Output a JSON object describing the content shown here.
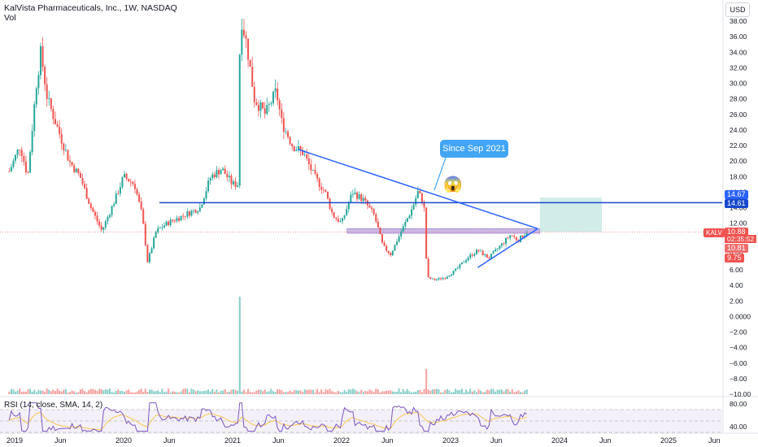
{
  "header": {
    "title": "KalVista Pharmaceuticals, Inc., 1W, NASDAQ",
    "volume_label": "Vol",
    "currency": "USD"
  },
  "annotation": {
    "callout_text": "Since Sep 2021",
    "emoji": "😱"
  },
  "price_labels": {
    "ticker": "KALV",
    "last_price": "10.88",
    "countdown": "02:35:52",
    "resistance_1": "14.67",
    "resistance_2": "14.61",
    "low": "10.81",
    "stop": "9.75"
  },
  "rsi": {
    "label": "RSI (14, close, SMA, 14, 2)",
    "ticks": [
      "80.00",
      "40.00"
    ]
  },
  "colors": {
    "up": "#26a69a",
    "down": "#ef5350",
    "trendline": "#2962ff",
    "horizontal_line": "#1848cc",
    "rsi_line": "#7e57c2",
    "rsi_ma": "#f9c74f",
    "zone": "#b39ddb",
    "target": "#b2dfdb",
    "stop": "#f8c1c0"
  },
  "chart_data": {
    "type": "candlestick",
    "title": "KalVista Pharmaceuticals, Inc., 1W, NASDAQ",
    "x_ticks": [
      "2019",
      "Jun",
      "2020",
      "Jun",
      "2021",
      "Jun",
      "2022",
      "Jun",
      "2023",
      "Jun",
      "2024",
      "Jun",
      "2025",
      "Jun"
    ],
    "y_ticks": [
      "38.00",
      "36.00",
      "34.00",
      "32.00",
      "30.00",
      "28.00",
      "26.00",
      "24.00",
      "22.00",
      "20.00",
      "18.00",
      "16.00",
      "14.00",
      "12.00",
      "10.00",
      "8.00",
      "6.00",
      "4.00",
      "2.00",
      "0.0000",
      "−2.00",
      "−4.00",
      "−6.00",
      "−8.00",
      "−10.00"
    ],
    "ylim": [
      -10,
      40
    ],
    "price_anchors": [
      {
        "t": 2018.9,
        "v": 17
      },
      {
        "t": 2019.05,
        "v": 22
      },
      {
        "t": 2019.12,
        "v": 18
      },
      {
        "t": 2019.2,
        "v": 30
      },
      {
        "t": 2019.24,
        "v": 34
      },
      {
        "t": 2019.3,
        "v": 28
      },
      {
        "t": 2019.4,
        "v": 24
      },
      {
        "t": 2019.5,
        "v": 20
      },
      {
        "t": 2019.6,
        "v": 18
      },
      {
        "t": 2019.7,
        "v": 14
      },
      {
        "t": 2019.8,
        "v": 11
      },
      {
        "t": 2019.92,
        "v": 15
      },
      {
        "t": 2020.0,
        "v": 18
      },
      {
        "t": 2020.1,
        "v": 17
      },
      {
        "t": 2020.17,
        "v": 13
      },
      {
        "t": 2020.22,
        "v": 7
      },
      {
        "t": 2020.3,
        "v": 11
      },
      {
        "t": 2020.4,
        "v": 12
      },
      {
        "t": 2020.55,
        "v": 13
      },
      {
        "t": 2020.7,
        "v": 14
      },
      {
        "t": 2020.8,
        "v": 18
      },
      {
        "t": 2020.9,
        "v": 19
      },
      {
        "t": 2021.0,
        "v": 17
      },
      {
        "t": 2021.05,
        "v": 17
      },
      {
        "t": 2021.07,
        "v": 39
      },
      {
        "t": 2021.13,
        "v": 35
      },
      {
        "t": 2021.2,
        "v": 28
      },
      {
        "t": 2021.3,
        "v": 26
      },
      {
        "t": 2021.4,
        "v": 29
      },
      {
        "t": 2021.45,
        "v": 25
      },
      {
        "t": 2021.55,
        "v": 22
      },
      {
        "t": 2021.65,
        "v": 21
      },
      {
        "t": 2021.75,
        "v": 18
      },
      {
        "t": 2021.85,
        "v": 16
      },
      {
        "t": 2021.92,
        "v": 13
      },
      {
        "t": 2022.0,
        "v": 12
      },
      {
        "t": 2022.1,
        "v": 16
      },
      {
        "t": 2022.2,
        "v": 15
      },
      {
        "t": 2022.3,
        "v": 13
      },
      {
        "t": 2022.38,
        "v": 9
      },
      {
        "t": 2022.45,
        "v": 8
      },
      {
        "t": 2022.55,
        "v": 11
      },
      {
        "t": 2022.65,
        "v": 14
      },
      {
        "t": 2022.7,
        "v": 16
      },
      {
        "t": 2022.74,
        "v": 15
      },
      {
        "t": 2022.77,
        "v": 13
      },
      {
        "t": 2022.78,
        "v": 5
      },
      {
        "t": 2022.85,
        "v": 4.7
      },
      {
        "t": 2022.95,
        "v": 5
      },
      {
        "t": 2023.05,
        "v": 6
      },
      {
        "t": 2023.15,
        "v": 7.5
      },
      {
        "t": 2023.25,
        "v": 8.5
      },
      {
        "t": 2023.35,
        "v": 7.5
      },
      {
        "t": 2023.45,
        "v": 9
      },
      {
        "t": 2023.55,
        "v": 10.5
      },
      {
        "t": 2023.62,
        "v": 9.8
      },
      {
        "t": 2023.7,
        "v": 10.88
      }
    ],
    "volume_spikes": [
      {
        "t": 2021.07,
        "v": 100
      },
      {
        "t": 2022.78,
        "v": 26
      }
    ],
    "drawings": {
      "horizontal_level": 14.64,
      "zone": [
        10.7,
        11.3
      ],
      "descending_trendline": [
        {
          "t": 2021.6,
          "v": 21.5
        },
        {
          "t": 2023.8,
          "v": 11.3
        }
      ],
      "rising_trendline": [
        {
          "t": 2023.25,
          "v": 6.3
        },
        {
          "t": 2023.8,
          "v": 11.3
        }
      ],
      "target_box": [
        10.88,
        15.3
      ],
      "stop_box": [
        9.75,
        10.88
      ]
    },
    "rsi_ylim": [
      30,
      90
    ],
    "rsi_levels": [
      70,
      50,
      30
    ]
  }
}
